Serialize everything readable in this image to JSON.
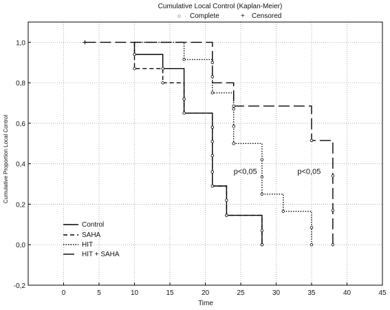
{
  "chart_data": {
    "type": "line",
    "title": "Cumulative Local Control (Kaplan-Meier)",
    "xlabel": "Time",
    "ylabel": "Cumulative Proportion Local Control",
    "xlim": [
      -5,
      45
    ],
    "ylim": [
      -0.2,
      1.1
    ],
    "x_ticks": [
      0,
      5,
      10,
      15,
      20,
      25,
      30,
      35,
      40,
      45
    ],
    "y_ticks": [
      {
        "value": -0.2,
        "label": "-0,2"
      },
      {
        "value": 0.0,
        "label": "0,0"
      },
      {
        "value": 0.2,
        "label": "0,2"
      },
      {
        "value": 0.4,
        "label": "0,4"
      },
      {
        "value": 0.6,
        "label": "0,6"
      },
      {
        "value": 0.8,
        "label": "0,8"
      },
      {
        "value": 1.0,
        "label": "1,0"
      }
    ],
    "grid": true,
    "legend_position": "bottom-left",
    "marker_legend": [
      {
        "symbol": "○",
        "label": "Complete"
      },
      {
        "symbol": "+",
        "label": "Censored"
      }
    ],
    "annotations": [
      {
        "text": "p<0,05",
        "x": 24,
        "y": 0.35
      },
      {
        "text": "p<0,05",
        "x": 33,
        "y": 0.35
      }
    ],
    "series": [
      {
        "name": "Control",
        "style": "solid",
        "steps": [
          [
            10,
            1.0
          ],
          [
            10,
            0.94
          ],
          [
            14,
            0.94
          ],
          [
            14,
            0.87
          ],
          [
            17,
            0.87
          ],
          [
            17,
            0.65
          ],
          [
            21,
            0.65
          ],
          [
            21,
            0.29
          ],
          [
            23,
            0.29
          ],
          [
            23,
            0.145
          ],
          [
            28,
            0.145
          ],
          [
            28,
            0.0
          ]
        ],
        "points": [
          [
            10,
            0.94
          ],
          [
            14,
            0.87
          ],
          [
            17,
            0.72
          ],
          [
            17,
            0.65
          ],
          [
            21,
            0.58
          ],
          [
            21,
            0.51
          ],
          [
            21,
            0.44
          ],
          [
            21,
            0.36
          ],
          [
            21,
            0.29
          ],
          [
            23,
            0.22
          ],
          [
            23,
            0.145
          ],
          [
            28,
            0.07
          ],
          [
            28,
            0.0
          ]
        ]
      },
      {
        "name": "SAHA",
        "style": "dashed",
        "steps": [
          [
            10,
            1.0
          ],
          [
            10,
            0.87
          ],
          [
            14,
            0.87
          ],
          [
            14,
            0.8
          ],
          [
            17,
            0.8
          ],
          [
            17,
            0.65
          ],
          [
            21,
            0.65
          ],
          [
            21,
            0.29
          ],
          [
            23,
            0.29
          ],
          [
            23,
            0.145
          ],
          [
            28,
            0.145
          ],
          [
            28,
            0.0
          ]
        ],
        "points": [
          [
            10,
            0.87
          ],
          [
            14,
            0.8
          ],
          [
            17,
            0.72
          ],
          [
            21,
            0.58
          ],
          [
            21,
            0.36
          ],
          [
            23,
            0.145
          ],
          [
            28,
            0.0
          ]
        ]
      },
      {
        "name": "HIT",
        "style": "dotted",
        "steps": [
          [
            10,
            1.0
          ],
          [
            17,
            1.0
          ],
          [
            17,
            0.915
          ],
          [
            21,
            0.915
          ],
          [
            21,
            0.75
          ],
          [
            24,
            0.75
          ],
          [
            24,
            0.5
          ],
          [
            28,
            0.5
          ],
          [
            28,
            0.25
          ],
          [
            31,
            0.25
          ],
          [
            31,
            0.165
          ],
          [
            35,
            0.165
          ],
          [
            35,
            0.0
          ]
        ],
        "points": [
          [
            17,
            0.915
          ],
          [
            21,
            0.75
          ],
          [
            24,
            0.67
          ],
          [
            24,
            0.585
          ],
          [
            24,
            0.5
          ],
          [
            28,
            0.42
          ],
          [
            28,
            0.335
          ],
          [
            28,
            0.25
          ],
          [
            31,
            0.165
          ],
          [
            35,
            0.085
          ],
          [
            35,
            0.0
          ]
        ]
      },
      {
        "name": "HIT + SAHA",
        "style": "longdash",
        "steps": [
          [
            3,
            1.0
          ],
          [
            21,
            1.0
          ],
          [
            21,
            0.8
          ],
          [
            24,
            0.8
          ],
          [
            24,
            0.685
          ],
          [
            35,
            0.685
          ],
          [
            35,
            0.515
          ],
          [
            38,
            0.515
          ],
          [
            38,
            0.0
          ]
        ],
        "points": [
          [
            21,
            0.9
          ],
          [
            21,
            0.83
          ],
          [
            24,
            0.685
          ],
          [
            35,
            0.515
          ],
          [
            38,
            0.34
          ],
          [
            38,
            0.17
          ],
          [
            38,
            0.0
          ]
        ],
        "censored": [
          [
            3,
            1.0
          ]
        ]
      }
    ]
  }
}
